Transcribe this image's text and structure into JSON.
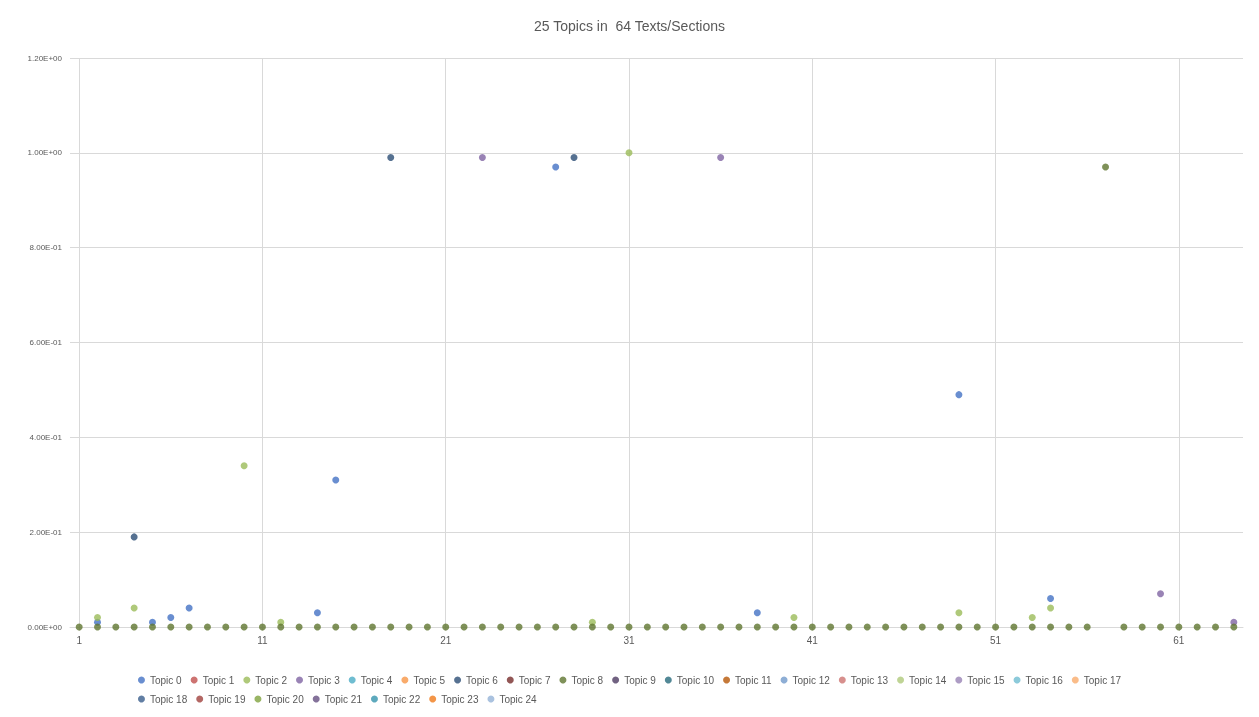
{
  "chart_data": {
    "type": "scatter",
    "title": "25 Topics in  64 Texts/Sections",
    "categories": [
      "1",
      null,
      null,
      null,
      null,
      null,
      null,
      null,
      null,
      null,
      "11",
      null,
      null,
      null,
      null,
      null,
      null,
      null,
      null,
      null,
      "21",
      null,
      null,
      null,
      null,
      null,
      null,
      null,
      null,
      null,
      "31",
      null,
      null,
      null,
      null,
      null,
      null,
      null,
      null,
      null,
      "41",
      null,
      null,
      null,
      null,
      null,
      null,
      null,
      null,
      null,
      "51",
      null,
      null,
      null,
      null,
      null,
      null,
      null,
      null,
      null,
      "61",
      null,
      null,
      null
    ],
    "ylim": [
      0,
      1.2
    ],
    "yticks": [
      {
        "value": 0,
        "label": "0.00E+00"
      },
      {
        "value": 0.2,
        "label": "2.00E-01"
      },
      {
        "value": 0.4,
        "label": "4.00E-01"
      },
      {
        "value": 0.6,
        "label": "6.00E-01"
      },
      {
        "value": 0.8,
        "label": "8.00E-01"
      },
      {
        "value": 1.0,
        "label": "1.00E+00"
      },
      {
        "value": 1.2,
        "label": "1.20E+00"
      }
    ],
    "grid": true,
    "legend": "bottom",
    "marker": "circle",
    "series": [
      {
        "name": "Topic 0",
        "color": "#4472c4",
        "values": [
          null,
          0.01,
          null,
          null,
          0.01,
          0.02,
          0.04,
          null,
          null,
          null,
          null,
          null,
          null,
          0.03,
          0.31,
          null,
          null,
          null,
          null,
          null,
          null,
          null,
          null,
          null,
          null,
          null,
          0.97,
          null,
          null,
          null,
          null,
          null,
          null,
          null,
          null,
          null,
          null,
          0.03,
          null,
          null,
          null,
          null,
          null,
          null,
          null,
          null,
          null,
          null,
          0.49,
          null,
          null,
          null,
          null,
          0.06,
          null,
          null,
          null,
          null,
          null,
          null,
          null,
          null,
          null,
          null
        ]
      },
      {
        "name": "Topic 1",
        "color": "#c0504d",
        "values": [
          null,
          null,
          null,
          null,
          null,
          null,
          null,
          null,
          null,
          null,
          null,
          null,
          null,
          null,
          null,
          null,
          null,
          null,
          null,
          null,
          null,
          null,
          null,
          null,
          null,
          null,
          null,
          null,
          null,
          null,
          null,
          null,
          null,
          null,
          null,
          null,
          null,
          null,
          null,
          null,
          null,
          null,
          null,
          null,
          null,
          null,
          null,
          null,
          null,
          null,
          null,
          null,
          null,
          null,
          null,
          null,
          null,
          null,
          null,
          null,
          null,
          null,
          null,
          null
        ]
      },
      {
        "name": "Topic 2",
        "color": "#9bbb59",
        "values": [
          null,
          0.02,
          null,
          0.04,
          null,
          null,
          null,
          null,
          null,
          0.34,
          null,
          0.01,
          null,
          null,
          null,
          null,
          null,
          null,
          null,
          null,
          null,
          null,
          null,
          null,
          null,
          null,
          null,
          null,
          0.01,
          null,
          1.0,
          null,
          null,
          null,
          null,
          null,
          null,
          null,
          null,
          0.02,
          null,
          null,
          null,
          null,
          null,
          null,
          null,
          null,
          0.03,
          null,
          null,
          null,
          0.02,
          0.04,
          null,
          null,
          null,
          null,
          null,
          null,
          null,
          null,
          null,
          null
        ]
      },
      {
        "name": "Topic 3",
        "color": "#8064a2",
        "values": [
          null,
          null,
          null,
          null,
          null,
          null,
          null,
          null,
          null,
          null,
          null,
          null,
          null,
          null,
          null,
          null,
          null,
          null,
          null,
          null,
          null,
          null,
          0.99,
          null,
          null,
          null,
          null,
          null,
          null,
          null,
          null,
          null,
          null,
          null,
          null,
          0.99,
          null,
          null,
          null,
          null,
          null,
          null,
          null,
          null,
          null,
          null,
          null,
          null,
          null,
          null,
          null,
          null,
          null,
          null,
          null,
          null,
          null,
          null,
          null,
          0.07,
          null,
          null,
          null,
          0.01
        ]
      },
      {
        "name": "Topic 4",
        "color": "#4bacc6",
        "values": [
          null,
          null,
          null,
          null,
          null,
          null,
          null,
          null,
          null,
          null,
          null,
          null,
          null,
          null,
          null,
          null,
          null,
          null,
          null,
          null,
          null,
          null,
          null,
          null,
          null,
          null,
          null,
          null,
          null,
          null,
          null,
          null,
          null,
          null,
          null,
          null,
          null,
          null,
          null,
          null,
          null,
          null,
          null,
          null,
          null,
          null,
          null,
          null,
          null,
          null,
          null,
          null,
          null,
          null,
          null,
          null,
          null,
          null,
          null,
          null,
          null,
          null,
          null,
          null
        ]
      },
      {
        "name": "Topic 5",
        "color": "#f79646",
        "values": [
          null,
          null,
          null,
          null,
          null,
          null,
          null,
          null,
          null,
          null,
          null,
          null,
          null,
          null,
          null,
          null,
          null,
          null,
          null,
          null,
          null,
          null,
          null,
          null,
          null,
          null,
          null,
          null,
          null,
          null,
          null,
          null,
          null,
          null,
          null,
          null,
          null,
          null,
          null,
          null,
          null,
          null,
          null,
          null,
          null,
          null,
          null,
          null,
          null,
          null,
          null,
          null,
          null,
          null,
          null,
          null,
          null,
          null,
          null,
          null,
          null,
          null,
          null,
          null
        ]
      },
      {
        "name": "Topic 6",
        "color": "#2c4d75",
        "values": [
          null,
          null,
          null,
          0.19,
          null,
          null,
          null,
          null,
          null,
          null,
          null,
          null,
          null,
          null,
          null,
          null,
          null,
          0.99,
          null,
          null,
          null,
          null,
          null,
          null,
          null,
          null,
          null,
          0.99,
          null,
          null,
          null,
          null,
          null,
          null,
          null,
          null,
          null,
          null,
          null,
          null,
          null,
          null,
          null,
          null,
          null,
          null,
          null,
          null,
          null,
          null,
          null,
          null,
          null,
          null,
          null,
          null,
          null,
          null,
          null,
          null,
          null,
          null,
          null,
          null
        ]
      },
      {
        "name": "Topic 7",
        "color": "#772c2a",
        "values": [
          null,
          null,
          null,
          null,
          null,
          null,
          null,
          null,
          null,
          null,
          null,
          null,
          null,
          null,
          null,
          null,
          null,
          null,
          null,
          null,
          null,
          null,
          null,
          null,
          null,
          null,
          null,
          null,
          null,
          null,
          null,
          null,
          null,
          null,
          null,
          null,
          null,
          null,
          null,
          null,
          null,
          null,
          null,
          null,
          null,
          null,
          null,
          null,
          null,
          null,
          null,
          null,
          null,
          null,
          null,
          null,
          null,
          null,
          null,
          null,
          null,
          null,
          null,
          null
        ]
      },
      {
        "name": "Topic 8",
        "color": "#5f7530",
        "values": [
          0,
          0,
          0,
          0,
          0,
          0,
          0,
          0,
          0,
          0,
          0,
          0,
          0,
          0,
          0,
          0,
          0,
          0,
          0,
          0,
          0,
          0,
          0,
          0,
          0,
          0,
          0,
          0,
          0,
          0,
          0,
          0,
          0,
          0,
          0,
          0,
          0,
          0,
          0,
          0,
          0,
          0,
          0,
          0,
          0,
          0,
          0,
          0,
          0,
          0,
          0,
          0,
          0,
          0,
          0,
          0,
          0.97,
          0,
          0,
          0,
          0,
          0,
          0,
          0
        ]
      },
      {
        "name": "Topic 9",
        "color": "#4d3b62",
        "values": [
          null,
          null,
          null,
          null,
          null,
          null,
          null,
          null,
          null,
          null,
          null,
          null,
          null,
          null,
          null,
          null,
          null,
          null,
          null,
          null,
          null,
          null,
          null,
          null,
          null,
          null,
          null,
          null,
          null,
          null,
          null,
          null,
          null,
          null,
          null,
          null,
          null,
          null,
          null,
          null,
          null,
          null,
          null,
          null,
          null,
          null,
          null,
          null,
          null,
          null,
          null,
          null,
          null,
          null,
          null,
          null,
          null,
          null,
          null,
          null,
          null,
          null,
          null,
          null
        ]
      },
      {
        "name": "Topic 10",
        "color": "#276a7c",
        "values": [
          null,
          null,
          null,
          null,
          null,
          null,
          null,
          null,
          null,
          null,
          null,
          null,
          null,
          null,
          null,
          null,
          null,
          null,
          null,
          null,
          null,
          null,
          null,
          null,
          null,
          null,
          null,
          null,
          null,
          null,
          null,
          null,
          null,
          null,
          null,
          null,
          null,
          null,
          null,
          null,
          null,
          null,
          null,
          null,
          null,
          null,
          null,
          null,
          null,
          null,
          null,
          null,
          null,
          null,
          null,
          null,
          null,
          null,
          null,
          null,
          null,
          null,
          null,
          null
        ]
      },
      {
        "name": "Topic 11",
        "color": "#b65708",
        "values": [
          null,
          null,
          null,
          null,
          null,
          null,
          null,
          null,
          null,
          null,
          null,
          null,
          null,
          null,
          null,
          null,
          null,
          null,
          null,
          null,
          null,
          null,
          null,
          null,
          null,
          null,
          null,
          null,
          null,
          null,
          null,
          null,
          null,
          null,
          null,
          null,
          null,
          null,
          null,
          null,
          null,
          null,
          null,
          null,
          null,
          null,
          null,
          null,
          null,
          null,
          null,
          null,
          null,
          null,
          null,
          null,
          null,
          null,
          null,
          null,
          null,
          null,
          null,
          null
        ]
      },
      {
        "name": "Topic 12",
        "color": "#729aca",
        "values": [
          null,
          null,
          null,
          null,
          null,
          null,
          null,
          null,
          null,
          null,
          null,
          null,
          null,
          null,
          null,
          null,
          null,
          null,
          null,
          null,
          null,
          null,
          null,
          null,
          null,
          null,
          null,
          null,
          null,
          null,
          null,
          null,
          null,
          null,
          null,
          null,
          null,
          null,
          null,
          null,
          null,
          null,
          null,
          null,
          null,
          null,
          null,
          null,
          null,
          null,
          null,
          null,
          null,
          null,
          null,
          null,
          null,
          null,
          null,
          null,
          null,
          null,
          null,
          null
        ]
      },
      {
        "name": "Topic 13",
        "color": "#cd7371",
        "values": [
          null,
          null,
          null,
          null,
          null,
          null,
          null,
          null,
          null,
          null,
          null,
          null,
          null,
          null,
          null,
          null,
          null,
          null,
          null,
          null,
          null,
          null,
          null,
          null,
          null,
          null,
          null,
          null,
          null,
          null,
          null,
          null,
          null,
          null,
          null,
          null,
          null,
          null,
          null,
          null,
          null,
          null,
          null,
          null,
          null,
          null,
          null,
          null,
          null,
          null,
          null,
          null,
          null,
          null,
          null,
          null,
          null,
          null,
          null,
          null,
          null,
          null,
          null,
          null
        ]
      },
      {
        "name": "Topic 14",
        "color": "#afc97a",
        "values": [
          null,
          null,
          null,
          null,
          null,
          null,
          null,
          null,
          null,
          null,
          null,
          null,
          null,
          null,
          null,
          null,
          null,
          null,
          null,
          null,
          null,
          null,
          null,
          null,
          null,
          null,
          null,
          null,
          null,
          null,
          null,
          null,
          null,
          null,
          null,
          null,
          null,
          null,
          null,
          null,
          null,
          null,
          null,
          null,
          null,
          null,
          null,
          null,
          null,
          null,
          null,
          null,
          null,
          null,
          null,
          null,
          null,
          null,
          null,
          null,
          null,
          null,
          null,
          null
        ]
      },
      {
        "name": "Topic 15",
        "color": "#9983b5",
        "values": [
          null,
          null,
          null,
          null,
          null,
          null,
          null,
          null,
          null,
          null,
          null,
          null,
          null,
          null,
          null,
          null,
          null,
          null,
          null,
          null,
          null,
          null,
          null,
          null,
          null,
          null,
          null,
          null,
          null,
          null,
          null,
          null,
          null,
          null,
          null,
          null,
          null,
          null,
          null,
          null,
          null,
          null,
          null,
          null,
          null,
          null,
          null,
          null,
          null,
          null,
          null,
          null,
          null,
          null,
          null,
          null,
          null,
          null,
          null,
          null,
          null,
          null,
          null,
          null
        ]
      },
      {
        "name": "Topic 16",
        "color": "#6fbdd1",
        "values": [
          null,
          null,
          null,
          null,
          null,
          null,
          null,
          null,
          null,
          null,
          null,
          null,
          null,
          null,
          null,
          null,
          null,
          null,
          null,
          null,
          null,
          null,
          null,
          null,
          null,
          null,
          null,
          null,
          null,
          null,
          null,
          null,
          null,
          null,
          null,
          null,
          null,
          null,
          null,
          null,
          null,
          null,
          null,
          null,
          null,
          null,
          null,
          null,
          null,
          null,
          null,
          null,
          null,
          null,
          null,
          null,
          null,
          null,
          null,
          null,
          null,
          null,
          null,
          null
        ]
      },
      {
        "name": "Topic 17",
        "color": "#f9ab6b",
        "values": [
          null,
          null,
          null,
          null,
          null,
          null,
          null,
          null,
          null,
          null,
          null,
          null,
          null,
          null,
          null,
          null,
          null,
          null,
          null,
          null,
          null,
          null,
          null,
          null,
          null,
          null,
          null,
          null,
          null,
          null,
          null,
          null,
          null,
          null,
          null,
          null,
          null,
          null,
          null,
          null,
          null,
          null,
          null,
          null,
          null,
          null,
          null,
          null,
          null,
          null,
          null,
          null,
          null,
          null,
          null,
          null,
          null,
          null,
          null,
          null,
          null,
          null,
          null,
          null
        ]
      },
      {
        "name": "Topic 18",
        "color": "#3a5e8c",
        "values": [
          null,
          null,
          null,
          null,
          null,
          null,
          null,
          null,
          null,
          null,
          null,
          null,
          null,
          null,
          null,
          null,
          null,
          null,
          null,
          null,
          null,
          null,
          null,
          null,
          null,
          null,
          null,
          null,
          null,
          null,
          null,
          null,
          null,
          null,
          null,
          null,
          null,
          null,
          null,
          null,
          null,
          null,
          null,
          null,
          null,
          null,
          null,
          null,
          null,
          null,
          null,
          null,
          null,
          null,
          null,
          null,
          null,
          null,
          null,
          null,
          null,
          null,
          null,
          null
        ]
      },
      {
        "name": "Topic 19",
        "color": "#a0413d",
        "values": [
          null,
          null,
          null,
          null,
          null,
          null,
          null,
          null,
          null,
          null,
          null,
          null,
          null,
          null,
          null,
          null,
          null,
          null,
          null,
          null,
          null,
          null,
          null,
          null,
          null,
          null,
          null,
          null,
          null,
          null,
          null,
          null,
          null,
          null,
          null,
          null,
          null,
          null,
          null,
          null,
          null,
          null,
          null,
          null,
          null,
          null,
          null,
          null,
          null,
          null,
          null,
          null,
          null,
          null,
          null,
          null,
          null,
          null,
          null,
          null,
          null,
          null,
          null,
          null
        ]
      },
      {
        "name": "Topic 20",
        "color": "#7fa23e",
        "values": [
          null,
          null,
          null,
          null,
          null,
          null,
          null,
          null,
          null,
          null,
          null,
          null,
          null,
          null,
          null,
          null,
          null,
          null,
          null,
          null,
          null,
          null,
          null,
          null,
          null,
          null,
          null,
          null,
          null,
          null,
          null,
          null,
          null,
          null,
          null,
          null,
          null,
          null,
          null,
          null,
          null,
          null,
          null,
          null,
          null,
          null,
          null,
          null,
          null,
          null,
          null,
          null,
          null,
          null,
          null,
          null,
          null,
          null,
          null,
          null,
          null,
          null,
          null,
          null
        ]
      },
      {
        "name": "Topic 21",
        "color": "#654f81",
        "values": [
          null,
          null,
          null,
          null,
          null,
          null,
          null,
          null,
          null,
          null,
          null,
          null,
          null,
          null,
          null,
          null,
          null,
          null,
          null,
          null,
          null,
          null,
          null,
          null,
          null,
          null,
          null,
          null,
          null,
          null,
          null,
          null,
          null,
          null,
          null,
          null,
          null,
          null,
          null,
          null,
          null,
          null,
          null,
          null,
          null,
          null,
          null,
          null,
          null,
          null,
          null,
          null,
          null,
          null,
          null,
          null,
          null,
          null,
          null,
          null,
          null,
          null,
          null,
          null
        ]
      },
      {
        "name": "Topic 22",
        "color": "#3494ad",
        "values": [
          null,
          null,
          null,
          null,
          null,
          null,
          null,
          null,
          null,
          null,
          null,
          null,
          null,
          null,
          null,
          null,
          null,
          null,
          null,
          null,
          null,
          null,
          null,
          null,
          null,
          null,
          null,
          null,
          null,
          null,
          null,
          null,
          null,
          null,
          null,
          null,
          null,
          null,
          null,
          null,
          null,
          null,
          null,
          null,
          null,
          null,
          null,
          null,
          null,
          null,
          null,
          null,
          null,
          null,
          null,
          null,
          null,
          null,
          null,
          null,
          null,
          null,
          null,
          null
        ]
      },
      {
        "name": "Topic 23",
        "color": "#f07a1a",
        "values": [
          null,
          null,
          null,
          null,
          null,
          null,
          null,
          null,
          null,
          null,
          null,
          null,
          null,
          null,
          null,
          null,
          null,
          null,
          null,
          null,
          null,
          null,
          null,
          null,
          null,
          null,
          null,
          null,
          null,
          null,
          null,
          null,
          null,
          null,
          null,
          null,
          null,
          null,
          null,
          null,
          null,
          null,
          null,
          null,
          null,
          null,
          null,
          null,
          null,
          null,
          null,
          null,
          null,
          null,
          null,
          null,
          null,
          null,
          null,
          null,
          null,
          null,
          null,
          null
        ]
      },
      {
        "name": "Topic 24",
        "color": "#95b3d7",
        "values": [
          null,
          null,
          null,
          null,
          null,
          null,
          null,
          null,
          null,
          null,
          null,
          null,
          null,
          null,
          null,
          null,
          null,
          null,
          null,
          null,
          null,
          null,
          null,
          null,
          null,
          null,
          null,
          null,
          null,
          null,
          null,
          null,
          null,
          null,
          null,
          null,
          null,
          null,
          null,
          null,
          null,
          null,
          null,
          null,
          null,
          null,
          null,
          null,
          null,
          null,
          null,
          null,
          null,
          null,
          null,
          null,
          null,
          null,
          null,
          null,
          null,
          null,
          null,
          null
        ]
      }
    ]
  }
}
